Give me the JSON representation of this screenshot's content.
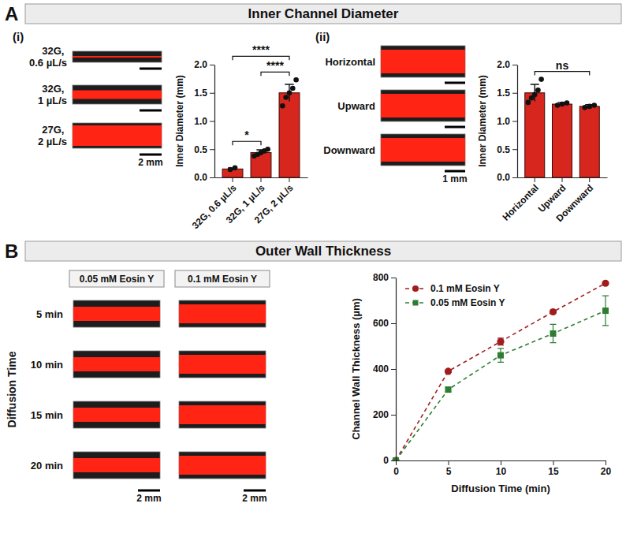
{
  "figure": {
    "panels": [
      {
        "letter": "A",
        "title": "Inner Channel Diameter",
        "subpanels": [
          "(i)",
          "(ii)"
        ]
      },
      {
        "letter": "B",
        "title": "Outer Wall Thickness"
      }
    ],
    "images": {
      "a_i": {
        "scale_bar": "2 mm"
      },
      "a_ii": {
        "scale_bar": "1 mm"
      },
      "b": {
        "columns": [
          "0.05 mM Eosin Y",
          "0.1 mM Eosin Y"
        ],
        "row_title": "Diffusion Time",
        "rows": [
          "5 min",
          "10 min",
          "15 min",
          "20 min"
        ],
        "scale_bar": "2 mm"
      }
    }
  },
  "chart_data": [
    {
      "type": "bar",
      "categories": [
        "32G, 0.6 µL/s",
        "32G, 1 µL/s",
        "27G, 2 µL/s"
      ],
      "values": [
        0.15,
        0.44,
        1.5
      ],
      "errors": [
        0.02,
        0.05,
        0.15
      ],
      "points": [
        [
          0.14,
          0.17
        ],
        [
          0.38,
          0.41,
          0.44,
          0.47,
          0.5
        ],
        [
          1.27,
          1.42,
          1.5,
          1.58,
          1.73
        ]
      ],
      "color": "#d7261e",
      "y_label": "Inner Diameter (mm)",
      "ylim": [
        0,
        2
      ],
      "yticks": [
        {
          "value": 0,
          "label": "0.0"
        },
        {
          "value": 0.5,
          "label": "0.5"
        },
        {
          "value": 1,
          "label": "1.0"
        },
        {
          "value": 1.5,
          "label": "1.5"
        },
        {
          "value": 2,
          "label": "2.0"
        }
      ],
      "annotations": [
        {
          "text": "*",
          "from": 0,
          "to": 1
        },
        {
          "text": "****",
          "from": 1,
          "to": 2
        },
        {
          "text": "****",
          "from": 0,
          "to": 2
        }
      ]
    },
    {
      "type": "bar",
      "categories": [
        "Horizontal",
        "Upward",
        "Downward"
      ],
      "values": [
        1.5,
        1.3,
        1.26
      ],
      "errors": [
        0.15,
        0.03,
        0.03
      ],
      "points": [
        [
          1.33,
          1.41,
          1.47,
          1.55,
          1.74
        ],
        [
          1.28,
          1.3,
          1.32
        ],
        [
          1.24,
          1.26,
          1.28
        ]
      ],
      "color": "#d7261e",
      "y_label": "Inner Diameter (mm)",
      "ylim": [
        0,
        2
      ],
      "yticks": [
        {
          "value": 0,
          "label": "0.0"
        },
        {
          "value": 0.5,
          "label": "0.5"
        },
        {
          "value": 1,
          "label": "1.0"
        },
        {
          "value": 1.5,
          "label": "1.5"
        },
        {
          "value": 2,
          "label": "2.0"
        }
      ],
      "annotations": [
        {
          "text": "ns",
          "from": 0,
          "to": 2
        }
      ]
    },
    {
      "type": "line",
      "x": [
        0,
        5,
        10,
        15,
        20
      ],
      "series": [
        {
          "name": "0.1 mM Eosin Y",
          "color": "#a11d1d",
          "marker": "circle",
          "values": [
            0,
            390,
            520,
            650,
            775
          ],
          "errors": [
            0,
            5,
            15,
            5,
            5
          ]
        },
        {
          "name": "0.05 mM Eosin Y",
          "color": "#2e7d32",
          "marker": "square",
          "values": [
            0,
            310,
            460,
            555,
            655
          ],
          "errors": [
            0,
            10,
            30,
            40,
            65
          ]
        }
      ],
      "line_style": "dashed",
      "legend": "top-left",
      "x_label": "Diffusion Time (min)",
      "y_label": "Channel Wall Thickness (µm)",
      "xlim": [
        0,
        20
      ],
      "xticks": [
        0,
        5,
        10,
        15,
        20
      ],
      "ylim": [
        0,
        800
      ],
      "yticks": [
        0,
        200,
        400,
        600,
        800
      ]
    }
  ]
}
